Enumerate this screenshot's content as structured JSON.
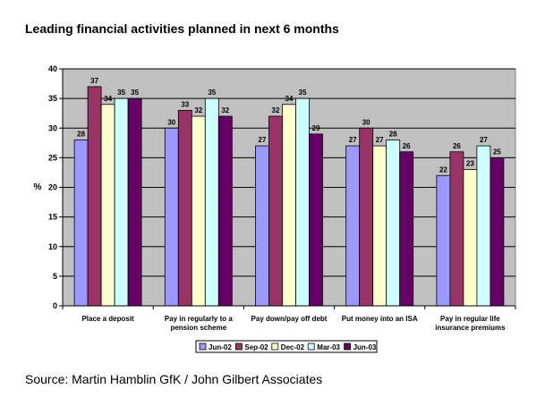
{
  "chart_data": {
    "type": "bar",
    "title": "Leading financial activities planned in next 6 months",
    "xlabel": "",
    "ylabel": "%",
    "ylim": [
      0,
      40
    ],
    "yticks": [
      0,
      5,
      10,
      15,
      20,
      25,
      30,
      35,
      40
    ],
    "grid": true,
    "legend_position": "bottom",
    "categories": [
      [
        "Place a deposit"
      ],
      [
        "Pay in regularly to a",
        "pension scheme"
      ],
      [
        "Pay down/pay off debt"
      ],
      [
        "Put money into an ISA"
      ],
      [
        "Pay in regular  life",
        "insurance premiums"
      ]
    ],
    "series": [
      {
        "name": "Jun-02",
        "color": "#9999ff",
        "values": [
          28,
          30,
          27,
          27,
          22
        ]
      },
      {
        "name": "Sep-02",
        "color": "#993366",
        "values": [
          37,
          33,
          32,
          30,
          26
        ]
      },
      {
        "name": "Dec-02",
        "color": "#ffffcc",
        "values": [
          34,
          32,
          34,
          27,
          23
        ]
      },
      {
        "name": "Mar-03",
        "color": "#ccffff",
        "values": [
          35,
          35,
          35,
          28,
          27
        ]
      },
      {
        "name": "Jun-03",
        "color": "#660066",
        "values": [
          35,
          32,
          29,
          26,
          25
        ]
      }
    ],
    "plot_bg": "#c0c0c0"
  },
  "source": "Source: Martin Hamblin GfK / John Gilbert Associates"
}
